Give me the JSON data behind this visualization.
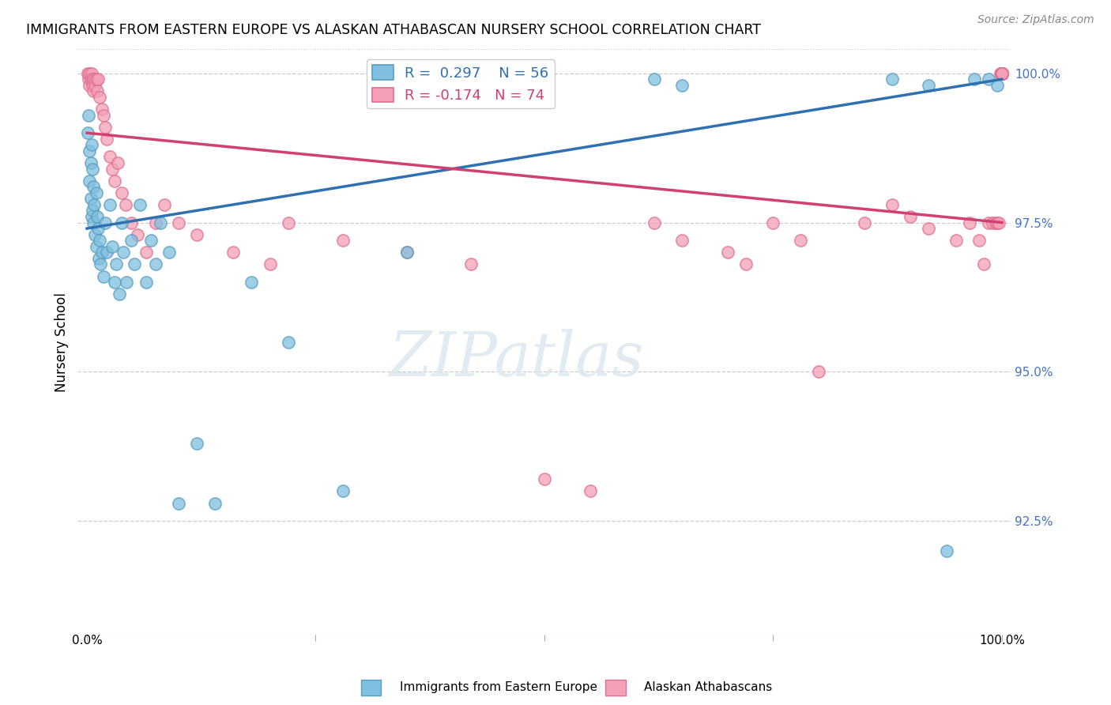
{
  "title": "IMMIGRANTS FROM EASTERN EUROPE VS ALASKAN ATHABASCAN NURSERY SCHOOL CORRELATION CHART",
  "source": "Source: ZipAtlas.com",
  "ylabel": "Nursery School",
  "legend_blue_label": "Immigrants from Eastern Europe",
  "legend_pink_label": "Alaskan Athabascans",
  "R_blue": 0.297,
  "N_blue": 56,
  "R_pink": -0.174,
  "N_pink": 74,
  "blue_color": "#7fbfdf",
  "pink_color": "#f4a0b8",
  "blue_edge_color": "#5a9ec0",
  "pink_edge_color": "#e07090",
  "trend_blue_color": "#3070b0",
  "trend_pink_color": "#d04070",
  "right_label_color": "#4472c4",
  "xlim": [
    -0.01,
    1.01
  ],
  "ylim": [
    0.906,
    1.004
  ],
  "blue_trend_start_y": 0.974,
  "blue_trend_end_y": 0.999,
  "pink_trend_start_y": 0.99,
  "pink_trend_end_y": 0.975,
  "blue_x": [
    0.001,
    0.002,
    0.003,
    0.003,
    0.004,
    0.004,
    0.005,
    0.005,
    0.006,
    0.006,
    0.007,
    0.007,
    0.008,
    0.009,
    0.01,
    0.01,
    0.011,
    0.012,
    0.013,
    0.014,
    0.015,
    0.016,
    0.018,
    0.02,
    0.022,
    0.025,
    0.028,
    0.03,
    0.032,
    0.035,
    0.038,
    0.04,
    0.043,
    0.048,
    0.052,
    0.058,
    0.065,
    0.07,
    0.075,
    0.08,
    0.09,
    0.1,
    0.12,
    0.14,
    0.18,
    0.22,
    0.28,
    0.35,
    0.62,
    0.65,
    0.88,
    0.92,
    0.94,
    0.97,
    0.985,
    0.995
  ],
  "blue_y": [
    0.99,
    0.993,
    0.987,
    0.982,
    0.985,
    0.979,
    0.988,
    0.976,
    0.984,
    0.977,
    0.981,
    0.975,
    0.978,
    0.973,
    0.98,
    0.971,
    0.976,
    0.974,
    0.969,
    0.972,
    0.968,
    0.97,
    0.966,
    0.975,
    0.97,
    0.978,
    0.971,
    0.965,
    0.968,
    0.963,
    0.975,
    0.97,
    0.965,
    0.972,
    0.968,
    0.978,
    0.965,
    0.972,
    0.968,
    0.975,
    0.97,
    0.928,
    0.938,
    0.928,
    0.965,
    0.955,
    0.93,
    0.97,
    0.999,
    0.998,
    0.999,
    0.998,
    0.92,
    0.999,
    0.999,
    0.998
  ],
  "pink_x": [
    0.001,
    0.002,
    0.003,
    0.003,
    0.004,
    0.005,
    0.006,
    0.006,
    0.007,
    0.008,
    0.009,
    0.01,
    0.011,
    0.012,
    0.014,
    0.016,
    0.018,
    0.02,
    0.022,
    0.025,
    0.028,
    0.03,
    0.034,
    0.038,
    0.042,
    0.048,
    0.055,
    0.065,
    0.075,
    0.085,
    0.1,
    0.12,
    0.16,
    0.2,
    0.22,
    0.28,
    0.35,
    0.42,
    0.5,
    0.55,
    0.62,
    0.65,
    0.7,
    0.72,
    0.75,
    0.78,
    0.8,
    0.85,
    0.88,
    0.9,
    0.92,
    0.95,
    0.965,
    0.975,
    0.98,
    0.985,
    0.99,
    0.993,
    0.995,
    0.997,
    0.998,
    0.999,
    0.9995,
    0.9998,
    1.0,
    1.0,
    1.0,
    1.0,
    1.0,
    1.0,
    1.0,
    1.0,
    1.0,
    1.0
  ],
  "pink_y": [
    1.0,
    0.999,
    1.0,
    0.998,
    0.999,
    1.0,
    0.999,
    0.998,
    0.997,
    0.999,
    0.998,
    0.999,
    0.997,
    0.999,
    0.996,
    0.994,
    0.993,
    0.991,
    0.989,
    0.986,
    0.984,
    0.982,
    0.985,
    0.98,
    0.978,
    0.975,
    0.973,
    0.97,
    0.975,
    0.978,
    0.975,
    0.973,
    0.97,
    0.968,
    0.975,
    0.972,
    0.97,
    0.968,
    0.932,
    0.93,
    0.975,
    0.972,
    0.97,
    0.968,
    0.975,
    0.972,
    0.95,
    0.975,
    0.978,
    0.976,
    0.974,
    0.972,
    0.975,
    0.972,
    0.968,
    0.975,
    0.975,
    0.975,
    0.975,
    0.975,
    1.0,
    1.0,
    1.0,
    1.0,
    1.0,
    1.0,
    1.0,
    1.0,
    1.0,
    1.0,
    1.0,
    1.0,
    1.0,
    1.0
  ]
}
